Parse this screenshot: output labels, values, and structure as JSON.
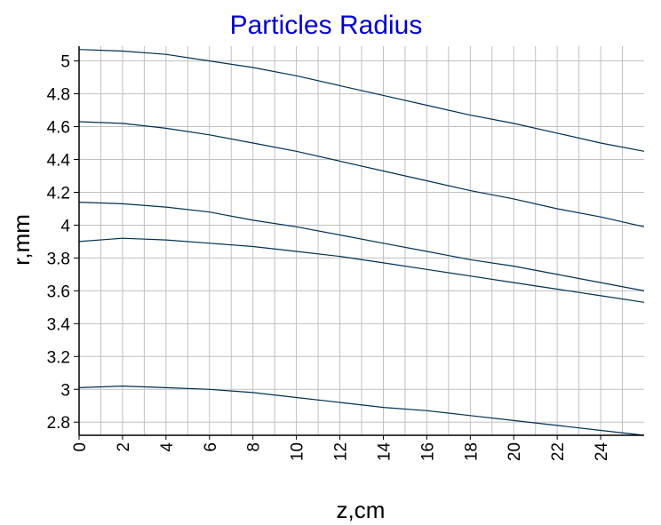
{
  "chart_data": {
    "type": "line",
    "title": "Particles Radius",
    "xlabel": "z,cm",
    "ylabel": "r,mm",
    "xlim": [
      0,
      26
    ],
    "ylim": [
      2.72,
      5.09
    ],
    "grid": true,
    "x_ticks": [
      0,
      2,
      4,
      6,
      8,
      10,
      12,
      14,
      16,
      18,
      20,
      22,
      24
    ],
    "x_tick_labels": [
      "0",
      "2",
      "4",
      "6",
      "8",
      "10",
      "12",
      "14",
      "16",
      "18",
      "20",
      "22",
      "24"
    ],
    "y_ticks": [
      2.8,
      3,
      3.2,
      3.4,
      3.6,
      3.8,
      4,
      4.2,
      4.4,
      4.6,
      4.8,
      5
    ],
    "y_tick_labels": [
      "2.8",
      "3",
      "3.2",
      "3.4",
      "3.6",
      "3.8",
      "4",
      "4.2",
      "4.4",
      "4.6",
      "4.8",
      "5"
    ],
    "line_color": "#003050",
    "title_color": "#0000cc",
    "x": [
      0,
      2,
      4,
      6,
      8,
      10,
      12,
      14,
      16,
      18,
      20,
      22,
      24,
      26
    ],
    "series": [
      {
        "values": [
          5.07,
          5.06,
          5.04,
          5.0,
          4.96,
          4.91,
          4.85,
          4.79,
          4.73,
          4.67,
          4.62,
          4.56,
          4.5,
          4.45
        ]
      },
      {
        "values": [
          4.63,
          4.62,
          4.59,
          4.55,
          4.5,
          4.45,
          4.39,
          4.33,
          4.27,
          4.21,
          4.16,
          4.1,
          4.05,
          3.99
        ]
      },
      {
        "values": [
          4.14,
          4.13,
          4.11,
          4.08,
          4.03,
          3.99,
          3.94,
          3.89,
          3.84,
          3.79,
          3.75,
          3.7,
          3.65,
          3.6
        ]
      },
      {
        "values": [
          3.9,
          3.92,
          3.91,
          3.89,
          3.87,
          3.84,
          3.81,
          3.77,
          3.73,
          3.69,
          3.65,
          3.61,
          3.57,
          3.53
        ]
      },
      {
        "values": [
          3.01,
          3.02,
          3.01,
          3.0,
          2.98,
          2.95,
          2.92,
          2.89,
          2.87,
          2.84,
          2.81,
          2.78,
          2.75,
          2.72
        ]
      }
    ]
  }
}
